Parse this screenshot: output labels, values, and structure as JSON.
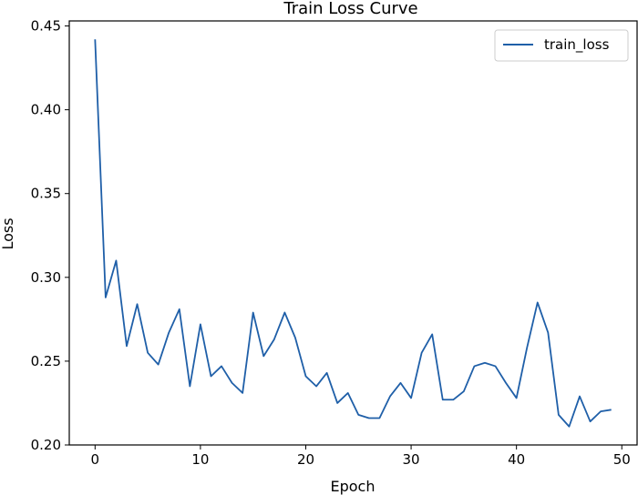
{
  "chart_data": {
    "type": "line",
    "title": "Train Loss Curve",
    "xlabel": "Epoch",
    "ylabel": "Loss",
    "xlim": [
      -2.45,
      51.45
    ],
    "ylim": [
      0.2,
      0.453
    ],
    "xticks": [
      0,
      10,
      20,
      30,
      40,
      50
    ],
    "yticks": [
      0.2,
      0.25,
      0.3,
      0.35,
      0.4,
      0.45
    ],
    "xtick_labels": [
      "0",
      "10",
      "20",
      "30",
      "40",
      "50"
    ],
    "ytick_labels": [
      "0.20",
      "0.25",
      "0.30",
      "0.35",
      "0.40",
      "0.45"
    ],
    "grid": false,
    "legend": {
      "position": "top-right"
    },
    "series": [
      {
        "name": "train_loss",
        "color": "#1f5fa8",
        "x": [
          0,
          1,
          2,
          3,
          4,
          5,
          6,
          7,
          8,
          9,
          10,
          11,
          12,
          13,
          14,
          15,
          16,
          17,
          18,
          19,
          20,
          21,
          22,
          23,
          24,
          25,
          26,
          27,
          28,
          29,
          30,
          31,
          32,
          33,
          34,
          35,
          36,
          37,
          38,
          39,
          40,
          41,
          42,
          43,
          44,
          45,
          46,
          47,
          48,
          49
        ],
        "y": [
          0.442,
          0.288,
          0.31,
          0.259,
          0.284,
          0.255,
          0.248,
          0.267,
          0.281,
          0.235,
          0.272,
          0.241,
          0.247,
          0.237,
          0.231,
          0.279,
          0.253,
          0.263,
          0.279,
          0.264,
          0.241,
          0.235,
          0.243,
          0.225,
          0.231,
          0.218,
          0.216,
          0.216,
          0.229,
          0.237,
          0.228,
          0.255,
          0.266,
          0.227,
          0.227,
          0.232,
          0.247,
          0.249,
          0.247,
          0.237,
          0.228,
          0.258,
          0.285,
          0.267,
          0.218,
          0.211,
          0.229,
          0.214,
          0.22,
          0.221
        ]
      }
    ]
  }
}
